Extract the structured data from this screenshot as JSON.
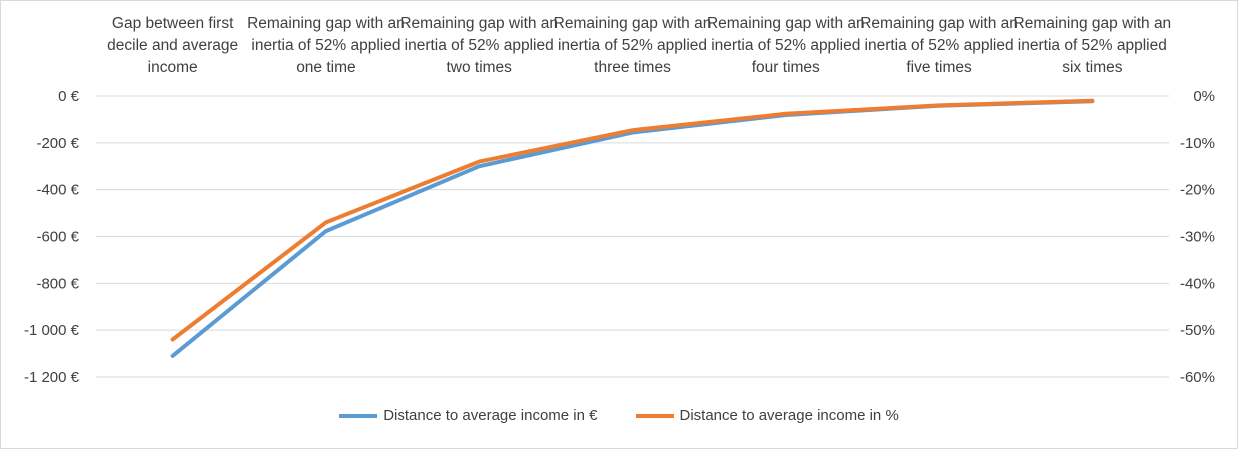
{
  "chart_data": {
    "type": "line",
    "categories": [
      "Gap between first decile and average income",
      "Remaining gap with an inertia of 52% applied one time",
      "Remaining gap with an inertia of 52% applied two times",
      "Remaining gap with an inertia of 52% applied three times",
      "Remaining gap with an inertia of 52% applied four times",
      "Remaining gap with an inertia of 52% applied five times",
      "Remaining gap with an inertia of 52% applied six times"
    ],
    "series": [
      {
        "name": "Distance to average income in €",
        "axis": "left",
        "color": "#5B9BD5",
        "values": [
          -1110,
          -577,
          -300,
          -156,
          -81,
          -42,
          -22
        ]
      },
      {
        "name": "Distance to average income in %",
        "axis": "right",
        "color": "#ED7D31",
        "values": [
          -52,
          -27,
          -14,
          -7.3,
          -3.8,
          -2,
          -1
        ]
      }
    ],
    "y_left": {
      "ylim": [
        -1200,
        0
      ],
      "ticks": [
        0,
        -200,
        -400,
        -600,
        -800,
        -1000,
        -1200
      ],
      "tick_labels": [
        "0 €",
        "-200 €",
        "-400 €",
        "-600 €",
        "-800 €",
        "-1 000 €",
        "-1 200 €"
      ]
    },
    "y_right": {
      "ylim": [
        -60,
        0
      ],
      "ticks": [
        0,
        -10,
        -20,
        -30,
        -40,
        -50,
        -60
      ],
      "tick_labels": [
        "0%",
        "-10%",
        "-20%",
        "-30%",
        "-40%",
        "-50%",
        "-60%"
      ]
    },
    "grid": true,
    "legend_position": "bottom",
    "title": "",
    "xlabel": "",
    "ylabel": ""
  }
}
